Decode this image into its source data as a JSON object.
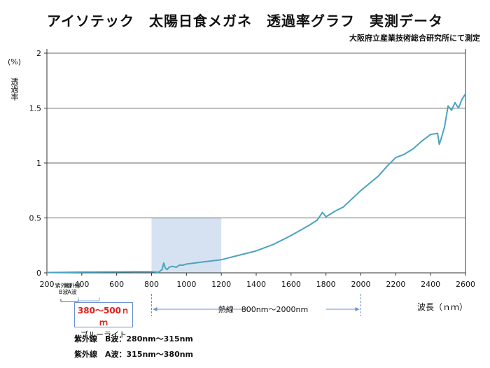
{
  "header": {
    "title": "アイソテック　太陽日食メガネ　透過率グラフ　実測データ",
    "subtitle": "大阪府立産業技術総合研究所にて測定"
  },
  "annotations": {
    "uv_b_short": "紫外線\nB波",
    "uv_a_short": "紫外線\nA波",
    "bluelight_range": "380〜500ｎｍ",
    "bluelight_label": "ブルーライト",
    "heat_label": "熱線　800nm〜2000nm",
    "uv_b_full": "紫外線　B波：280nm〜315nm",
    "uv_a_full": "紫外線　A波：315nm〜380nm"
  },
  "colors": {
    "line": "#4ba3c0",
    "highlight": "#d6e2f1",
    "bluebox_border": "#6a8fd0",
    "red_text": "#e0201b"
  },
  "chart_data": {
    "type": "line",
    "ylabel_top": "(%)",
    "ylabel": "透過率",
    "xlabel": "波長（ｎｍ）",
    "xlim": [
      200,
      2600
    ],
    "ylim": [
      0,
      2
    ],
    "xticks": [
      200,
      400,
      600,
      800,
      1000,
      1200,
      1400,
      1600,
      1800,
      2000,
      2200,
      2400,
      2600
    ],
    "yticks": [
      0,
      0.5,
      1,
      1.5,
      2
    ],
    "ytick_labels": [
      "0",
      "0.5",
      "1",
      "1.5",
      "2"
    ],
    "grid": "horizontal",
    "highlight_region": [
      800,
      1200
    ],
    "series": [
      {
        "x": [
          200,
          300,
          400,
          500,
          600,
          700,
          800,
          840,
          860,
          870,
          880,
          890,
          900,
          920,
          940,
          960,
          980,
          1000,
          1050,
          1100,
          1150,
          1200,
          1300,
          1400,
          1500,
          1600,
          1700,
          1750,
          1780,
          1800,
          1850,
          1900,
          2000,
          2100,
          2150,
          2200,
          2250,
          2300,
          2350,
          2400,
          2440,
          2450,
          2460,
          2480,
          2500,
          2520,
          2540,
          2560,
          2580,
          2600
        ],
        "y": [
          0.003,
          0.005,
          0.007,
          0.008,
          0.009,
          0.01,
          0.01,
          0.005,
          0.03,
          0.09,
          0.04,
          0.03,
          0.05,
          0.06,
          0.05,
          0.07,
          0.07,
          0.08,
          0.09,
          0.1,
          0.11,
          0.12,
          0.16,
          0.2,
          0.26,
          0.34,
          0.43,
          0.48,
          0.55,
          0.51,
          0.56,
          0.6,
          0.75,
          0.88,
          0.97,
          1.05,
          1.08,
          1.13,
          1.2,
          1.26,
          1.27,
          1.17,
          1.22,
          1.33,
          1.52,
          1.48,
          1.55,
          1.5,
          1.58,
          1.63
        ]
      }
    ]
  }
}
